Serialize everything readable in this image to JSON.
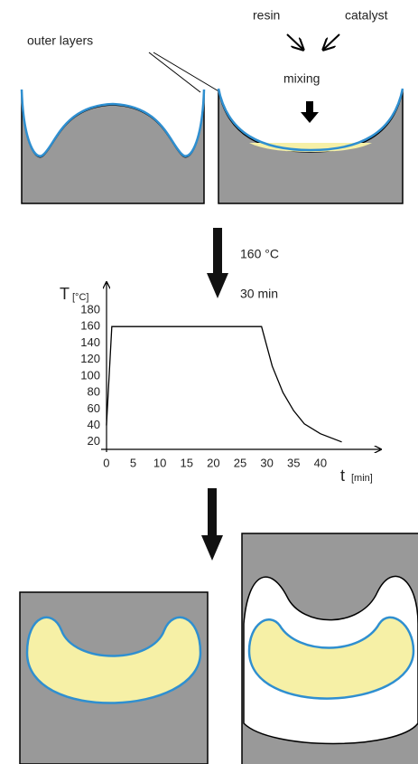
{
  "labels": {
    "outer_layers": "outer layers",
    "resin": "resin",
    "catalyst": "catalyst",
    "mixing": "mixing",
    "temperature": "160 °C",
    "time": "30 min"
  },
  "chart_data": {
    "type": "line",
    "y_label": "T",
    "y_unit": "[°C]",
    "x_label": "t",
    "x_unit": "[min]",
    "x": [
      0,
      1,
      29,
      31,
      33,
      35,
      37,
      40,
      44
    ],
    "values": [
      40,
      160,
      160,
      112,
      80,
      58,
      42,
      30,
      20
    ],
    "color": "#000000",
    "xlim": [
      -1,
      51
    ],
    "ylim": [
      11,
      214
    ],
    "xticks": [
      0,
      5,
      10,
      15,
      20,
      25,
      30,
      35,
      40
    ],
    "yticks": [
      20,
      40,
      60,
      80,
      100,
      120,
      140,
      160,
      180
    ]
  }
}
